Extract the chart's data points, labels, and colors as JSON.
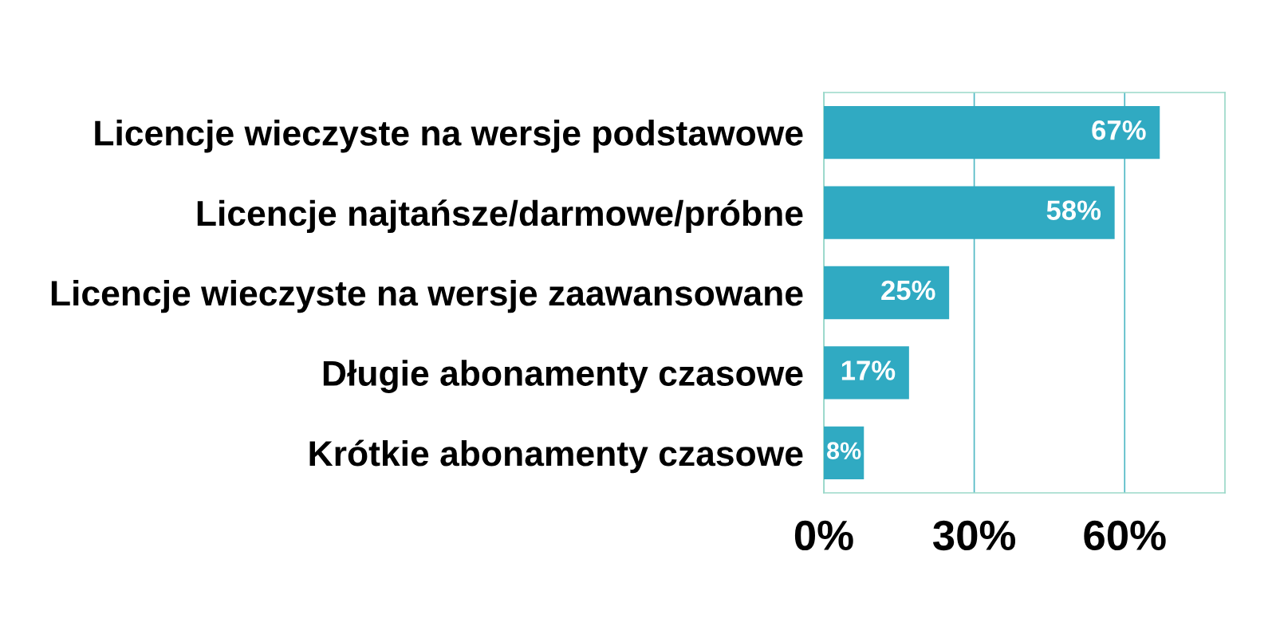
{
  "chart_data": {
    "type": "bar",
    "orientation": "horizontal",
    "categories": [
      "Licencje wieczyste na wersje podstawowe",
      "Licencje najtańsze/darmowe/próbne",
      "Licencje wieczyste na wersje zaawansowane",
      "Długie abonamenty czasowe",
      "Krótkie abonamenty czasowe"
    ],
    "values": [
      67,
      58,
      25,
      17,
      8
    ],
    "value_labels": [
      "67%",
      "58%",
      "25%",
      "17%",
      "8%"
    ],
    "color": "#30aac2",
    "xlim": [
      0,
      80
    ],
    "xticks": [
      {
        "value": 0,
        "label": "0%"
      },
      {
        "value": 30,
        "label": "30%"
      },
      {
        "value": 60,
        "label": "60%"
      }
    ],
    "grid": "x",
    "legend": false
  }
}
